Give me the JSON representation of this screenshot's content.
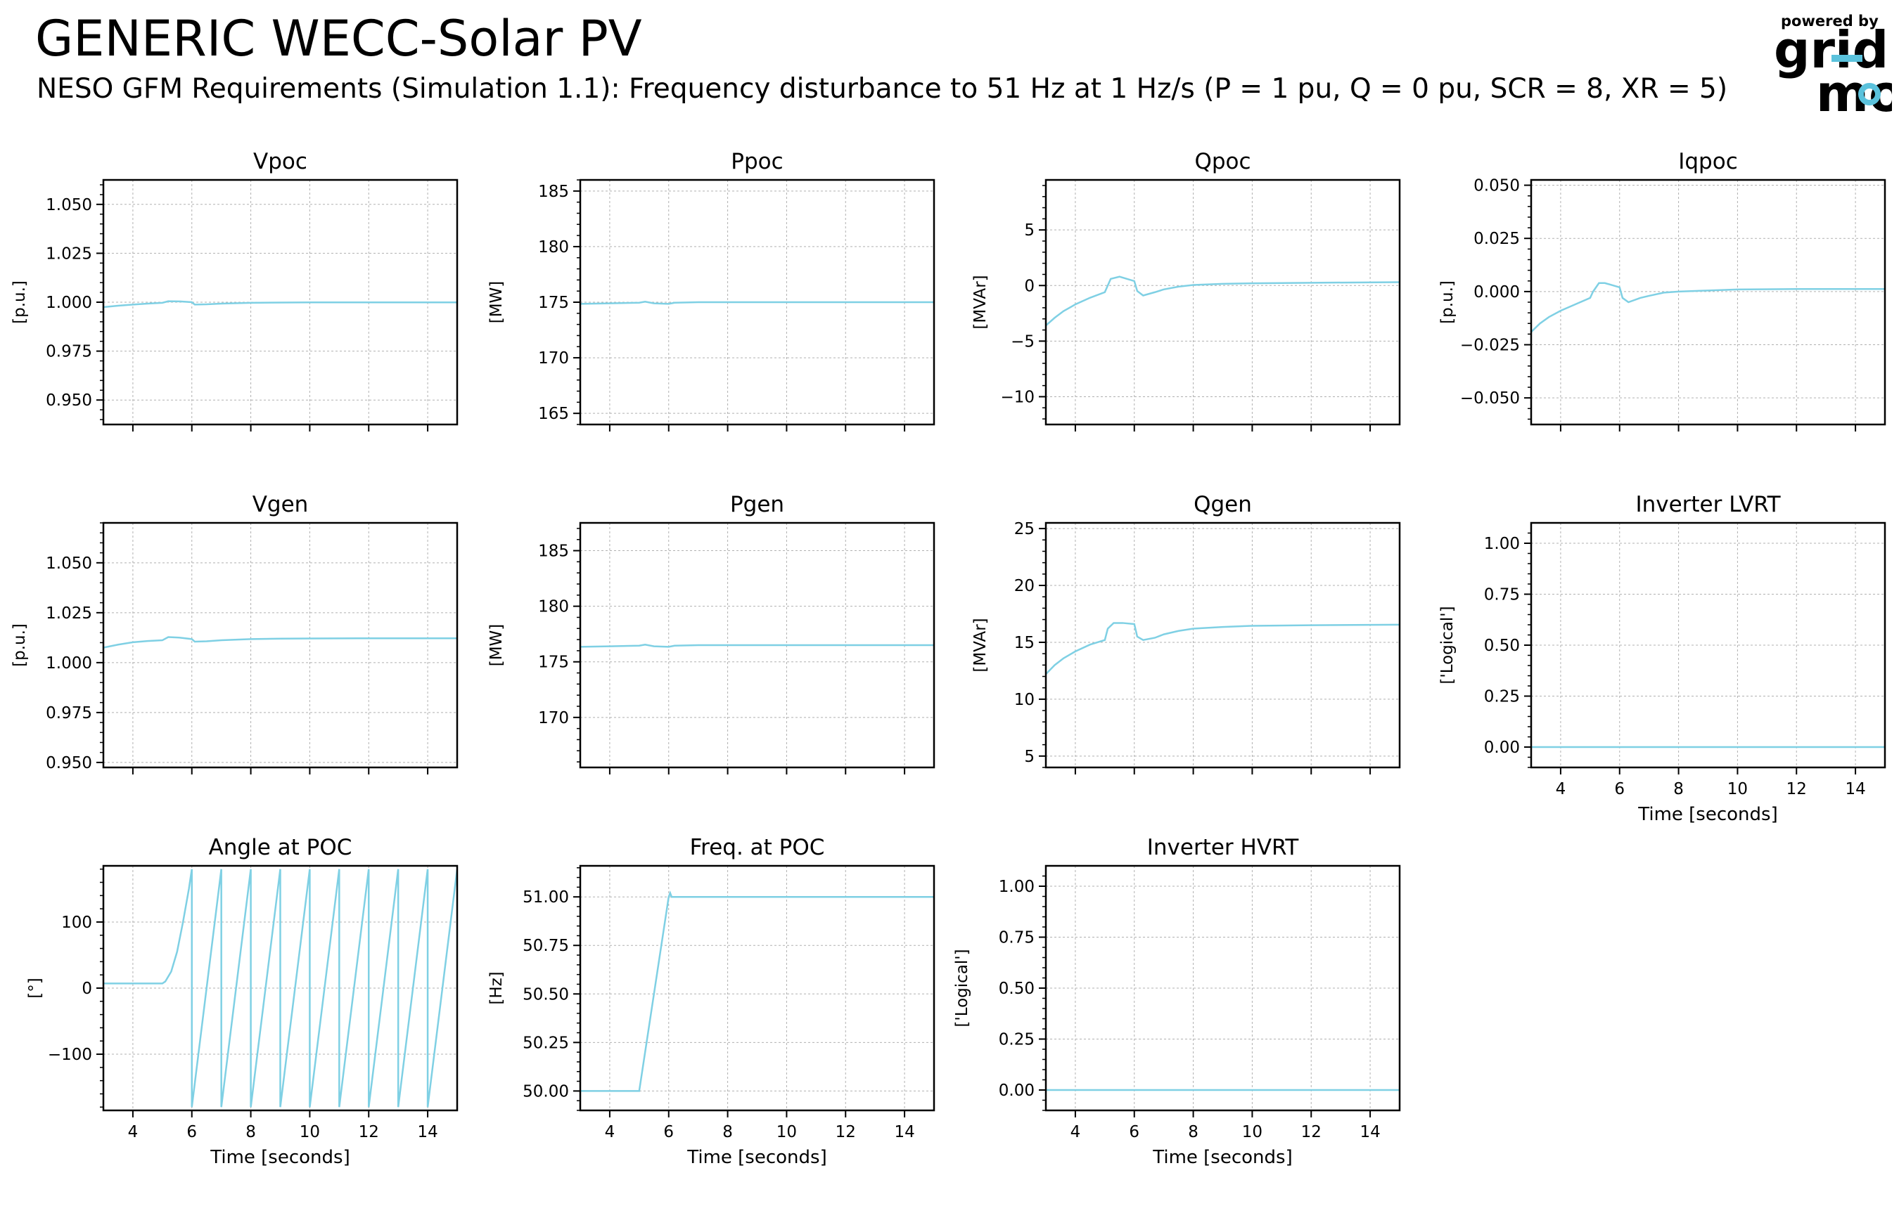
{
  "header": {
    "title": "GENERIC WECC-Solar PV",
    "subtitle": "NESO GFM Requirements (Simulation 1.1): Frequency disturbance to 51 Hz at 1 Hz/s (P = 1 pu, Q = 0 pu, SCR = 8, XR = 5)"
  },
  "logo": {
    "powered_by": "powered by",
    "line1": "grid",
    "line2": "mo",
    "color": "#5bc2dc"
  },
  "colors": {
    "trace": "#7fd0e4",
    "grid": "#b0b0b0",
    "axis": "#000000"
  },
  "chart_data": [
    {
      "type": "line",
      "title": "Vpoc",
      "ylabel": "[p.u.]",
      "xlabel": "",
      "xlim": [
        3,
        15
      ],
      "ylim": [
        0.9375,
        1.0625
      ],
      "yticks": [
        0.95,
        0.975,
        1.0,
        1.025,
        1.05
      ],
      "ytick_labels": [
        "0.950",
        "0.975",
        "1.000",
        "1.025",
        "1.050"
      ],
      "xticks": [
        4,
        6,
        8,
        10,
        12,
        14
      ],
      "xtick_labels": [],
      "grid": true,
      "x": [
        3,
        3.5,
        4,
        4.5,
        5,
        5.2,
        5.6,
        6,
        6.1,
        6.5,
        7,
        8,
        9,
        10,
        12,
        15
      ],
      "y": [
        0.9975,
        0.9982,
        0.9988,
        0.9993,
        0.9997,
        1.0005,
        1.0004,
        1.0,
        0.9988,
        0.9989,
        0.9993,
        0.9997,
        0.9998,
        0.9999,
        0.9999,
        0.9999
      ]
    },
    {
      "type": "line",
      "title": "Ppoc",
      "ylabel": "[MW]",
      "xlabel": "",
      "xlim": [
        3,
        15
      ],
      "ylim": [
        164,
        186
      ],
      "yticks": [
        165,
        170,
        175,
        180,
        185
      ],
      "ytick_labels": [
        "165",
        "170",
        "175",
        "180",
        "185"
      ],
      "xticks": [
        4,
        6,
        8,
        10,
        12,
        14
      ],
      "xtick_labels": [],
      "grid": true,
      "x": [
        3,
        4,
        5,
        5.2,
        5.5,
        6,
        6.2,
        7,
        10,
        15
      ],
      "y": [
        174.85,
        174.9,
        174.95,
        175.05,
        174.9,
        174.85,
        174.95,
        175.0,
        175.0,
        175.0
      ]
    },
    {
      "type": "line",
      "title": "Qpoc",
      "ylabel": "[MVAr]",
      "xlabel": "",
      "xlim": [
        3,
        15
      ],
      "ylim": [
        -12.5,
        9.5
      ],
      "yticks": [
        -10,
        -5,
        0,
        5
      ],
      "ytick_labels": [
        "−10",
        "−5",
        "0",
        "5"
      ],
      "xticks": [
        4,
        6,
        8,
        10,
        12,
        14
      ],
      "xtick_labels": [],
      "grid": true,
      "x": [
        3,
        3.3,
        3.6,
        4,
        4.5,
        5,
        5.1,
        5.2,
        5.5,
        6,
        6.1,
        6.3,
        6.7,
        7,
        7.5,
        8,
        9,
        10,
        12,
        15
      ],
      "y": [
        -3.6,
        -2.9,
        -2.3,
        -1.7,
        -1.1,
        -0.6,
        0.0,
        0.6,
        0.8,
        0.4,
        -0.5,
        -0.9,
        -0.6,
        -0.35,
        -0.1,
        0.05,
        0.15,
        0.2,
        0.25,
        0.3
      ]
    },
    {
      "type": "line",
      "title": "Iqpoc",
      "ylabel": "[p.u.]",
      "xlabel": "",
      "xlim": [
        3,
        15
      ],
      "ylim": [
        -0.0625,
        0.0525
      ],
      "yticks": [
        -0.05,
        -0.025,
        0.0,
        0.025,
        0.05
      ],
      "ytick_labels": [
        "−0.050",
        "−0.025",
        "0.000",
        "0.025",
        "0.050"
      ],
      "xticks": [
        4,
        6,
        8,
        10,
        12,
        14
      ],
      "xtick_labels": [],
      "grid": true,
      "x": [
        3,
        3.3,
        3.6,
        4,
        4.5,
        5,
        5.1,
        5.3,
        5.5,
        6,
        6.1,
        6.3,
        6.7,
        7,
        7.5,
        8,
        9,
        10,
        12,
        15
      ],
      "y": [
        -0.019,
        -0.015,
        -0.012,
        -0.009,
        -0.006,
        -0.003,
        0.0,
        0.004,
        0.004,
        0.002,
        -0.003,
        -0.005,
        -0.003,
        -0.002,
        -0.0005,
        0.0,
        0.0005,
        0.001,
        0.0012,
        0.0012
      ]
    },
    {
      "type": "line",
      "title": "Vgen",
      "ylabel": "[p.u.]",
      "xlabel": "",
      "xlim": [
        3,
        15
      ],
      "ylim": [
        0.9475,
        1.07
      ],
      "yticks": [
        0.95,
        0.975,
        1.0,
        1.025,
        1.05
      ],
      "ytick_labels": [
        "0.950",
        "0.975",
        "1.000",
        "1.025",
        "1.050"
      ],
      "xticks": [
        4,
        6,
        8,
        10,
        12,
        14
      ],
      "xtick_labels": [],
      "grid": true,
      "x": [
        3,
        3.5,
        4,
        4.5,
        5,
        5.2,
        5.6,
        6,
        6.1,
        6.5,
        7,
        8,
        9,
        10,
        12,
        15
      ],
      "y": [
        1.0075,
        1.009,
        1.0102,
        1.0108,
        1.0112,
        1.0128,
        1.0125,
        1.0118,
        1.0105,
        1.0107,
        1.0112,
        1.0118,
        1.012,
        1.0121,
        1.0122,
        1.0122
      ]
    },
    {
      "type": "line",
      "title": "Pgen",
      "ylabel": "[MW]",
      "xlabel": "",
      "xlim": [
        3,
        15
      ],
      "ylim": [
        165.5,
        187.5
      ],
      "yticks": [
        170,
        175,
        180,
        185
      ],
      "ytick_labels": [
        "170",
        "175",
        "180",
        "185"
      ],
      "xticks": [
        4,
        6,
        8,
        10,
        12,
        14
      ],
      "xtick_labels": [],
      "grid": true,
      "x": [
        3,
        4,
        5,
        5.2,
        5.5,
        6,
        6.2,
        7,
        10,
        15
      ],
      "y": [
        176.35,
        176.4,
        176.45,
        176.55,
        176.4,
        176.35,
        176.45,
        176.5,
        176.5,
        176.5
      ]
    },
    {
      "type": "line",
      "title": "Qgen",
      "ylabel": "[MVAr]",
      "xlabel": "",
      "xlim": [
        3,
        15
      ],
      "ylim": [
        4,
        25.5
      ],
      "yticks": [
        5,
        10,
        15,
        20,
        25
      ],
      "ytick_labels": [
        "5",
        "10",
        "15",
        "20",
        "25"
      ],
      "xticks": [
        4,
        6,
        8,
        10,
        12,
        14
      ],
      "xtick_labels": [],
      "grid": true,
      "x": [
        3,
        3.3,
        3.6,
        4,
        4.5,
        5,
        5.1,
        5.3,
        5.6,
        6,
        6.1,
        6.3,
        6.7,
        7,
        7.5,
        8,
        9,
        10,
        12,
        15
      ],
      "y": [
        12.2,
        13.0,
        13.6,
        14.2,
        14.8,
        15.2,
        16.2,
        16.7,
        16.7,
        16.6,
        15.5,
        15.2,
        15.4,
        15.7,
        16.0,
        16.2,
        16.35,
        16.45,
        16.5,
        16.55
      ]
    },
    {
      "type": "line",
      "title": "Inverter LVRT",
      "ylabel": "['Logical']",
      "xlabel": "Time [seconds]",
      "xlim": [
        3,
        15
      ],
      "ylim": [
        -0.1,
        1.1
      ],
      "yticks": [
        0.0,
        0.25,
        0.5,
        0.75,
        1.0
      ],
      "ytick_labels": [
        "0.00",
        "0.25",
        "0.50",
        "0.75",
        "1.00"
      ],
      "xticks": [
        4,
        6,
        8,
        10,
        12,
        14
      ],
      "xtick_labels": [
        "4",
        "6",
        "8",
        "10",
        "12",
        "14"
      ],
      "grid": true,
      "x": [
        3,
        15
      ],
      "y": [
        0,
        0
      ]
    },
    {
      "type": "line",
      "title": "Angle at POC",
      "ylabel": "[°]",
      "xlabel": "Time [seconds]",
      "xlim": [
        3,
        15
      ],
      "ylim": [
        -185,
        185
      ],
      "yticks": [
        -100,
        0,
        100
      ],
      "ytick_labels": [
        "−100",
        "0",
        "100"
      ],
      "xticks": [
        4,
        6,
        8,
        10,
        12,
        14
      ],
      "xtick_labels": [
        "4",
        "6",
        "8",
        "10",
        "12",
        "14"
      ],
      "grid": true,
      "x": [
        3,
        4,
        5,
        5.1,
        5.3,
        5.5,
        5.7,
        5.9,
        6.0,
        6.0,
        7.0,
        7.0,
        8.0,
        8.0,
        9.0,
        9.0,
        10.0,
        10.0,
        11.0,
        11.0,
        12.0,
        12.0,
        13.0,
        13.0,
        14.0,
        14.0,
        15.0
      ],
      "y": [
        7,
        7,
        7,
        10,
        25,
        55,
        100,
        150,
        180,
        -180,
        180,
        -180,
        180,
        -180,
        180,
        -180,
        180,
        -180,
        180,
        -180,
        180,
        -180,
        180,
        -180,
        180,
        -180,
        180
      ]
    },
    {
      "type": "line",
      "title": "Freq. at POC",
      "ylabel": "[Hz]",
      "xlabel": "Time [seconds]",
      "xlim": [
        3,
        15
      ],
      "ylim": [
        49.9,
        51.16
      ],
      "yticks": [
        50.0,
        50.25,
        50.5,
        50.75,
        51.0
      ],
      "ytick_labels": [
        "50.00",
        "50.25",
        "50.50",
        "50.75",
        "51.00"
      ],
      "xticks": [
        4,
        6,
        8,
        10,
        12,
        14
      ],
      "xtick_labels": [
        "4",
        "6",
        "8",
        "10",
        "12",
        "14"
      ],
      "grid": true,
      "x": [
        3,
        5.0,
        6.0,
        6.05,
        6.1,
        6.3,
        15
      ],
      "y": [
        50.0,
        50.0,
        51.0,
        51.02,
        51.0,
        51.0,
        51.0
      ]
    },
    {
      "type": "line",
      "title": "Inverter HVRT",
      "ylabel": "['Logical']",
      "xlabel": "Time [seconds]",
      "xlim": [
        3,
        15
      ],
      "ylim": [
        -0.1,
        1.1
      ],
      "yticks": [
        0.0,
        0.25,
        0.5,
        0.75,
        1.0
      ],
      "ytick_labels": [
        "0.00",
        "0.25",
        "0.50",
        "0.75",
        "1.00"
      ],
      "xticks": [
        4,
        6,
        8,
        10,
        12,
        14
      ],
      "xtick_labels": [
        "4",
        "6",
        "8",
        "10",
        "12",
        "14"
      ],
      "grid": true,
      "x": [
        3,
        15
      ],
      "y": [
        0,
        0
      ]
    }
  ]
}
